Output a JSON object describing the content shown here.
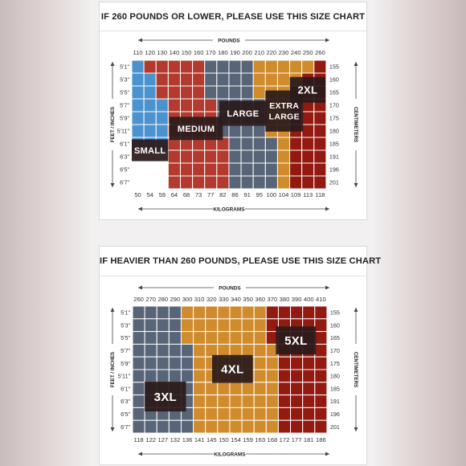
{
  "charts": [
    {
      "title": "IF 260 POUNDS OR LOWER, PLEASE USE THIS SIZE CHART",
      "top_axis_label": "POUNDS",
      "bottom_axis_label": "KILOGRAMS",
      "left_axis_label": "FEET / INCHES",
      "right_axis_label": "CENTIMETERS",
      "pounds": [
        "110",
        "120",
        "130",
        "140",
        "150",
        "160",
        "170",
        "180",
        "190",
        "200",
        "210",
        "220",
        "230",
        "240",
        "250",
        "260"
      ],
      "kilograms": [
        "50",
        "54",
        "59",
        "64",
        "68",
        "73",
        "77",
        "82",
        "86",
        "91",
        "95",
        "100",
        "104",
        "109",
        "113",
        "118"
      ],
      "heights": [
        "5'1\"",
        "5'3\"",
        "5'5\"",
        "5'7\"",
        "5'9\"",
        "5'11\"",
        "6'1\"",
        "6'3\"",
        "6'5\"",
        "6'7\""
      ],
      "centimeters": [
        "155",
        "160",
        "165",
        "170",
        "175",
        "180",
        "185",
        "191",
        "196",
        "201"
      ],
      "grid_rows": [
        "BRRRRRGGGGOOOOOD",
        "BBRRRRGGGGOOOODD",
        "BBRRRRGGGGOOODDD",
        "BBBRRRRGGGGOODDD",
        "BBBRRRRGGGGOODDD",
        "BBBRRRRGGGGOODDD",
        "BBBRRRRRGGGGODDD",
        "WWWRRRRRGGGGODDD",
        "WWWRRRRRGGGGODDD",
        "WWWRRRRRGGGGODDD"
      ],
      "size_labels": [
        {
          "text": "SMALL",
          "col": 0.0,
          "row": 6.15,
          "w": 3.0,
          "h": 1.7
        },
        {
          "text": "MEDIUM",
          "col": 3.1,
          "row": 4.4,
          "w": 4.4,
          "h": 1.8
        },
        {
          "text": "LARGE",
          "col": 7.2,
          "row": 3.15,
          "w": 3.9,
          "h": 1.95
        },
        {
          "text": "EXTRA\nLARGE",
          "col": 11.0,
          "row": 2.35,
          "w": 3.1,
          "h": 3.2
        },
        {
          "text": "2XL",
          "col": 13.0,
          "row": 1.3,
          "w": 2.95,
          "h": 2.0
        }
      ]
    },
    {
      "title": "IF HEAVIER THAN 260 POUNDS, PLEASE USE THIS SIZE CHART",
      "top_axis_label": "POUNDS",
      "bottom_axis_label": "KILOGRAMS",
      "left_axis_label": "FEET / INCHES",
      "right_axis_label": "CENTIMETERS",
      "pounds": [
        "260",
        "270",
        "280",
        "290",
        "300",
        "310",
        "320",
        "330",
        "340",
        "350",
        "360",
        "370",
        "380",
        "390",
        "400",
        "410"
      ],
      "kilograms": [
        "118",
        "122",
        "127",
        "132",
        "136",
        "141",
        "145",
        "150",
        "154",
        "159",
        "163",
        "168",
        "172",
        "177",
        "181",
        "186"
      ],
      "heights": [
        "5'1\"",
        "5'3\"",
        "5'5\"",
        "5'7\"",
        "5'9\"",
        "5'11\"",
        "6'1\"",
        "6'3\"",
        "6'5\"",
        "6'7\""
      ],
      "centimeters": [
        "155",
        "160",
        "165",
        "170",
        "175",
        "180",
        "185",
        "191",
        "196",
        "201"
      ],
      "grid_rows": [
        "GGGGOOOOOOODDDDD",
        "GGGGOOOOOOODDDDD",
        "GGGGOOOOOOODDDDD",
        "GGGGGOOOOOOODDDD",
        "GGGGGOOOOOOODDDD",
        "GGGGGOOOOOOODDDD",
        "GGGGGOOOOOOODDDD",
        "GGGGGOOOOOOODDDD",
        "GGGGGOOOOOOODDDD",
        "GGGGGOOOOOOODDDD"
      ],
      "size_labels": [
        {
          "text": "3XL",
          "col": 1.0,
          "row": 5.95,
          "w": 3.4,
          "h": 2.35
        },
        {
          "text": "4XL",
          "col": 6.55,
          "row": 3.85,
          "w": 3.35,
          "h": 2.2
        },
        {
          "text": "5XL",
          "col": 11.8,
          "row": 1.6,
          "w": 3.3,
          "h": 2.2
        }
      ]
    }
  ],
  "colors": {
    "B": "#4b93cf",
    "R": "#b23a2e",
    "G": "#586478",
    "O": "#d08b2c",
    "D": "#931a10",
    "W": "#ffffff",
    "label_bg": "#2b1b1b",
    "label_text": "#ffffff"
  }
}
